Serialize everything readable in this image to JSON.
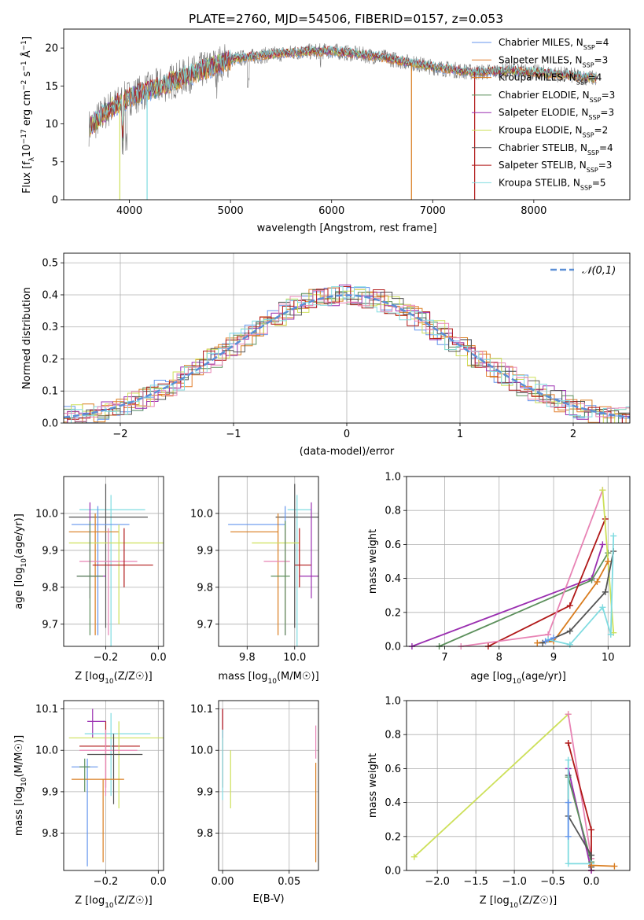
{
  "figure_title": "PLATE=2760, MJD=54506, FIBERID=0157, z=0.053",
  "colors": {
    "Chabrier MILES": "#6495ed",
    "Salpeter MILES": "#e27d2b",
    "Kroupa MILES": "#d97c1e",
    "Chabrier ELODIE": "#5b8f5b",
    "Salpeter ELODIE": "#9a2fb0",
    "Kroupa ELODIE": "#cde05a",
    "Chabrier STELIB": "#555555",
    "Salpeter STELIB": "#b01818",
    "Kroupa STELIB": "#7fdbe0",
    "pink": "#e884b5",
    "gauss": "#5b8fd6"
  },
  "chart_data": [
    {
      "id": "spectrum",
      "type": "line",
      "xlabel": "wavelength [Angstrom, rest frame]",
      "ylabel": "Flux [f",
      "xlim": [
        3350,
        8950
      ],
      "ylim": [
        0,
        22.5
      ],
      "xticks": [
        4000,
        5000,
        6000,
        7000,
        8000
      ],
      "yticks": [
        0,
        5,
        10,
        15,
        20
      ],
      "legend_position": "upper-right",
      "legend": [
        {
          "label": "Chabrier MILES, N",
          "n": "4",
          "color": "#6495ed"
        },
        {
          "label": "Salpeter MILES, N",
          "n": "3",
          "color": "#e27d2b"
        },
        {
          "label": "Kroupa MILES, N",
          "n": "4",
          "color": "#d97c1e"
        },
        {
          "label": "Chabrier ELODIE, N",
          "n": "3",
          "color": "#5b8f5b"
        },
        {
          "label": "Salpeter ELODIE, N",
          "n": "3",
          "color": "#9a2fb0"
        },
        {
          "label": "Kroupa ELODIE, N",
          "n": "2",
          "color": "#cde05a"
        },
        {
          "label": "Chabrier STELIB, N",
          "n": "4",
          "color": "#555555"
        },
        {
          "label": "Salpeter STELIB, N",
          "n": "3",
          "color": "#b01818"
        },
        {
          "label": "Kroupa STELIB, N",
          "n": "5",
          "color": "#7fdbe0"
        }
      ],
      "continuum_approx": [
        [
          3600,
          9.5
        ],
        [
          3800,
          12
        ],
        [
          4000,
          13.5
        ],
        [
          4300,
          15
        ],
        [
          4700,
          17
        ],
        [
          5000,
          18.5
        ],
        [
          5300,
          19
        ],
        [
          5700,
          19.5
        ],
        [
          6000,
          19.6
        ],
        [
          6500,
          18.8
        ],
        [
          7000,
          17.5
        ],
        [
          7400,
          16.8
        ],
        [
          7800,
          17
        ],
        [
          8300,
          16.5
        ],
        [
          8600,
          16
        ]
      ]
    },
    {
      "id": "residual_hist",
      "type": "histogram",
      "xlabel": "(data-model)/error",
      "ylabel": "Normed distribution",
      "xlim": [
        -2.5,
        2.5
      ],
      "ylim": [
        0,
        0.53
      ],
      "xticks": [
        -2,
        -1,
        0,
        1,
        2
      ],
      "yticks": [
        0.0,
        0.1,
        0.2,
        0.3,
        0.4,
        0.5
      ],
      "legend_label": "𝒩(0,1)",
      "legend_position": "upper-right",
      "series_shape": "approximately gaussian, mean 0, sigma 1, peak ~0.40, individual bins up to ~0.50"
    },
    {
      "id": "age_vs_Z",
      "type": "errorbar",
      "xlabel": "Z [log",
      "ylabel": "age  [log",
      "xlim": [
        -0.36,
        0.02
      ],
      "ylim": [
        9.64,
        10.1
      ],
      "xticks": [
        -0.2,
        0.0
      ],
      "yticks": [
        9.7,
        9.8,
        9.9,
        10.0
      ],
      "points": [
        {
          "x": -0.18,
          "xerr": [
            0.12,
            0.13
          ],
          "y": 10.01,
          "yerr": [
            0.37,
            0.04
          ],
          "color": "#7fdbe0"
        },
        {
          "x": -0.2,
          "xerr": [
            0.14,
            0.16
          ],
          "y": 9.99,
          "yerr": [
            0.3,
            0.09
          ],
          "color": "#555555"
        },
        {
          "x": -0.23,
          "xerr": [
            0.1,
            0.12
          ],
          "y": 9.97,
          "yerr": [
            0.3,
            0.05
          ],
          "color": "#6495ed"
        },
        {
          "x": -0.24,
          "xerr": [
            0.1,
            0.09
          ],
          "y": 9.95,
          "yerr": [
            0.28,
            0.05
          ],
          "color": "#d97c1e"
        },
        {
          "x": -0.15,
          "xerr": [
            0.19,
            0.17
          ],
          "y": 9.92,
          "yerr": [
            0.22,
            0.05
          ],
          "color": "#cde05a"
        },
        {
          "x": -0.19,
          "xerr": [
            0.11,
            0.11
          ],
          "y": 9.87,
          "yerr": [
            0.2,
            0.09
          ],
          "color": "#e884b5"
        },
        {
          "x": -0.13,
          "xerr": [
            0.12,
            0.11
          ],
          "y": 9.86,
          "yerr": [
            0.06,
            0.1
          ],
          "color": "#b01818"
        },
        {
          "x": -0.26,
          "xerr": [
            0.05,
            0.06
          ],
          "y": 9.83,
          "yerr": [
            0.06,
            0.2
          ],
          "color": "#9a2fb0"
        },
        {
          "x": -0.26,
          "xerr": [
            0.05,
            0.05
          ],
          "y": 9.83,
          "yerr": [
            0.16,
            0.15
          ],
          "color": "#5b8f5b"
        }
      ]
    },
    {
      "id": "age_vs_mass",
      "type": "errorbar",
      "xlabel": "mass [log",
      "ylabel": "",
      "xlim": [
        9.68,
        10.1
      ],
      "ylim": [
        9.64,
        10.1
      ],
      "xticks": [
        9.8,
        10.0
      ],
      "yticks": [
        9.7,
        9.8,
        9.9,
        10.0
      ],
      "points": [
        {
          "x": 10.01,
          "xerr": [
            0.04,
            0.06
          ],
          "y": 10.01,
          "yerr": [
            0.37,
            0.04
          ],
          "color": "#7fdbe0"
        },
        {
          "x": 10.0,
          "xerr": [
            0.08,
            0.1
          ],
          "y": 9.99,
          "yerr": [
            0.3,
            0.09
          ],
          "color": "#555555"
        },
        {
          "x": 9.96,
          "xerr": [
            0.24,
            0.0
          ],
          "y": 9.97,
          "yerr": [
            0.3,
            0.05
          ],
          "color": "#6495ed"
        },
        {
          "x": 9.93,
          "xerr": [
            0.2,
            0.0
          ],
          "y": 9.95,
          "yerr": [
            0.28,
            0.05
          ],
          "color": "#d97c1e"
        },
        {
          "x": 9.96,
          "xerr": [
            0.14,
            0.06
          ],
          "y": 9.92,
          "yerr": [
            0.22,
            0.05
          ],
          "color": "#cde05a"
        },
        {
          "x": 9.96,
          "xerr": [
            0.09,
            0.02
          ],
          "y": 9.87,
          "yerr": [
            0.2,
            0.09
          ],
          "color": "#e884b5"
        },
        {
          "x": 10.02,
          "xerr": [
            0.02,
            0.05
          ],
          "y": 9.86,
          "yerr": [
            0.06,
            0.1
          ],
          "color": "#b01818"
        },
        {
          "x": 10.07,
          "xerr": [
            0.05,
            0.03
          ],
          "y": 9.83,
          "yerr": [
            0.06,
            0.2
          ],
          "color": "#9a2fb0"
        },
        {
          "x": 9.96,
          "xerr": [
            0.06,
            0.02
          ],
          "y": 9.83,
          "yerr": [
            0.16,
            0.15
          ],
          "color": "#5b8f5b"
        }
      ]
    },
    {
      "id": "weight_vs_age",
      "type": "line",
      "xlabel": "age  [log",
      "ylabel": "mass weight",
      "xlim": [
        6.3,
        10.4
      ],
      "ylim": [
        0,
        1
      ],
      "xticks": [
        7,
        8,
        9,
        10
      ],
      "yticks": [
        0.0,
        0.2,
        0.4,
        0.6,
        0.8,
        1.0
      ],
      "series": [
        {
          "color": "#9a2fb0",
          "x": [
            6.4,
            9.7,
            9.9
          ],
          "y": [
            0.0,
            0.4,
            0.6
          ]
        },
        {
          "color": "#5b8f5b",
          "x": [
            6.9,
            9.7,
            10.0
          ],
          "y": [
            0.0,
            0.39,
            0.55
          ]
        },
        {
          "color": "#b01818",
          "x": [
            7.8,
            9.3,
            9.95
          ],
          "y": [
            0.0,
            0.24,
            0.75
          ]
        },
        {
          "color": "#e884b5",
          "x": [
            7.3,
            8.9,
            9.9
          ],
          "y": [
            0.0,
            0.07,
            0.92
          ]
        },
        {
          "color": "#cde05a",
          "x": [
            9.9,
            10.1
          ],
          "y": [
            0.92,
            0.08
          ]
        },
        {
          "color": "#d97c1e",
          "x": [
            8.7,
            9.0,
            9.8,
            10.0
          ],
          "y": [
            0.02,
            0.03,
            0.38,
            0.5
          ]
        },
        {
          "color": "#555555",
          "x": [
            8.8,
            9.3,
            9.95,
            10.1
          ],
          "y": [
            0.02,
            0.09,
            0.32,
            0.56
          ]
        },
        {
          "color": "#7fdbe0",
          "x": [
            8.9,
            9.3,
            9.9,
            10.05,
            10.1
          ],
          "y": [
            0.04,
            0.01,
            0.23,
            0.07,
            0.65
          ]
        },
        {
          "color": "#6495ed",
          "x": [
            8.85,
            9.0
          ],
          "y": [
            0.03,
            0.05
          ]
        }
      ]
    },
    {
      "id": "mass_vs_Z",
      "type": "errorbar",
      "xlabel": "Z [log",
      "ylabel": "mass [log",
      "xlim": [
        -0.36,
        0.02
      ],
      "ylim": [
        9.71,
        10.12
      ],
      "xticks": [
        -0.2,
        0.0
      ],
      "yticks": [
        9.8,
        9.9,
        10.0,
        10.1
      ],
      "points": [
        {
          "x": -0.25,
          "xerr": [
            0.02,
            0.05
          ],
          "y": 10.07,
          "yerr": [
            0.04,
            0.03
          ],
          "color": "#9a2fb0"
        },
        {
          "x": -0.2,
          "xerr": [
            0.1,
            0.13
          ],
          "y": 10.01,
          "yerr": [
            0.1,
            0.06
          ],
          "color": "#b01818"
        },
        {
          "x": -0.18,
          "xerr": [
            0.1,
            0.15
          ],
          "y": 10.04,
          "yerr": [
            0.15,
            0.05
          ],
          "color": "#7fdbe0"
        },
        {
          "x": -0.15,
          "xerr": [
            0.19,
            0.17
          ],
          "y": 10.03,
          "yerr": [
            0.17,
            0.04
          ],
          "color": "#cde05a"
        },
        {
          "x": -0.2,
          "xerr": [
            0.1,
            0.12
          ],
          "y": 10.0,
          "yerr": [
            0.11,
            0.05
          ],
          "color": "#e884b5"
        },
        {
          "x": -0.17,
          "xerr": [
            0.1,
            0.11
          ],
          "y": 9.99,
          "yerr": [
            0.12,
            0.05
          ],
          "color": "#555555"
        },
        {
          "x": -0.27,
          "xerr": [
            0.06,
            0.04
          ],
          "y": 9.96,
          "yerr": [
            0.24,
            0.02
          ],
          "color": "#6495ed"
        },
        {
          "x": -0.21,
          "xerr": [
            0.12,
            0.08
          ],
          "y": 9.93,
          "yerr": [
            0.2,
            0.0
          ],
          "color": "#d97c1e"
        },
        {
          "x": -0.28,
          "xerr": [
            0.02,
            0.02
          ],
          "y": 9.96,
          "yerr": [
            0.06,
            0.02
          ],
          "color": "#5b8f5b"
        }
      ]
    },
    {
      "id": "mass_vs_EBV",
      "type": "errorbar",
      "xlabel": "E(B-V)",
      "ylabel": "",
      "xlim": [
        -0.003,
        0.072
      ],
      "ylim": [
        9.71,
        10.12
      ],
      "xticks": [
        0.0,
        0.05
      ],
      "yticks": [
        9.8,
        9.9,
        10.0,
        10.1
      ],
      "points": [
        {
          "x": 0.0,
          "y": 10.07,
          "yerr": [
            0.04,
            0.03
          ],
          "color": "#9a2fb0"
        },
        {
          "x": 0.0,
          "y": 10.01,
          "yerr": [
            0.1,
            0.09
          ],
          "color": "#b01818"
        },
        {
          "x": 0.0,
          "y": 10.0,
          "yerr": [
            0.12,
            0.05
          ],
          "color": "#7fdbe0"
        },
        {
          "x": 0.006,
          "y": 9.93,
          "yerr": [
            0.07,
            0.07
          ],
          "color": "#cde05a"
        },
        {
          "x": 0.07,
          "y": 9.98,
          "yerr": [
            0.0,
            0.08
          ],
          "color": "#e884b5"
        },
        {
          "x": 0.07,
          "y": 9.85,
          "yerr": [
            0.12,
            0.12
          ],
          "color": "#d97c1e"
        }
      ]
    },
    {
      "id": "weight_vs_Z",
      "type": "line",
      "xlabel": "Z [log",
      "ylabel": "mass weight",
      "xlim": [
        -2.4,
        0.5
      ],
      "ylim": [
        0,
        1
      ],
      "xticks": [
        -2.0,
        -1.5,
        -1.0,
        -0.5,
        0.0
      ],
      "yticks": [
        0.0,
        0.2,
        0.4,
        0.6,
        0.8,
        1.0
      ],
      "series": [
        {
          "color": "#cde05a",
          "x": [
            -2.3,
            -0.3
          ],
          "y": [
            0.08,
            0.92
          ]
        },
        {
          "color": "#e884b5",
          "x": [
            -0.3,
            0.0
          ],
          "y": [
            0.92,
            0.07
          ]
        },
        {
          "color": "#b01818",
          "x": [
            -0.3,
            0.0,
            0.0
          ],
          "y": [
            0.75,
            0.24,
            0.0
          ]
        },
        {
          "color": "#9a2fb0",
          "x": [
            -0.3,
            0.0
          ],
          "y": [
            0.6,
            0.0
          ]
        },
        {
          "color": "#5b8f5b",
          "x": [
            -0.3,
            0.0
          ],
          "y": [
            0.55,
            0.05
          ]
        },
        {
          "color": "#555555",
          "x": [
            -0.3,
            -0.3,
            0.0,
            0.0
          ],
          "y": [
            0.56,
            0.32,
            0.09,
            0.02
          ]
        },
        {
          "color": "#7fdbe0",
          "x": [
            -0.3,
            -0.3,
            0.0
          ],
          "y": [
            0.65,
            0.04,
            0.04
          ]
        },
        {
          "color": "#d97c1e",
          "x": [
            0.0,
            0.3
          ],
          "y": [
            0.03,
            0.025
          ]
        },
        {
          "color": "#6495ed",
          "x": [
            -0.3,
            -0.3
          ],
          "y": [
            0.4,
            0.2
          ]
        }
      ]
    }
  ]
}
